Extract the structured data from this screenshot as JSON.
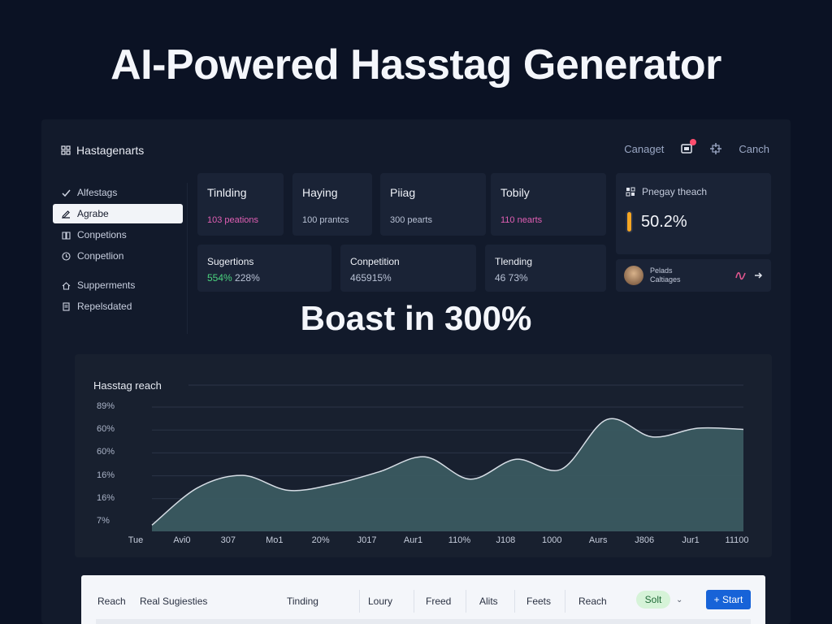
{
  "headline": "AI-Powered Hasstag Generator",
  "app": {
    "brand": "Hastagenarts",
    "top_actions": {
      "link1": "Canaget",
      "link2": "Canch"
    }
  },
  "sidebar": {
    "items": [
      {
        "label": "Alfestags",
        "icon": "check-icon"
      },
      {
        "label": "Agrabe",
        "icon": "edit-icon",
        "active": true
      },
      {
        "label": "Conpetions",
        "icon": "book-icon"
      },
      {
        "label": "Conpetlion",
        "icon": "clock-icon"
      },
      {
        "label": "Supperments",
        "icon": "home-icon"
      },
      {
        "label": "Repelsdated",
        "icon": "document-icon"
      }
    ]
  },
  "stat_cards": [
    {
      "title": "Tinlding",
      "sub": "103 peations",
      "sub_color": "#e15fb4"
    },
    {
      "title": "Haying",
      "sub": "100 prantcs",
      "sub_color": "#b8c1d4"
    },
    {
      "title": "Piiag",
      "sub": "300 pearts",
      "sub_color": "#b8c1d4"
    },
    {
      "title": "Tobily",
      "sub": "110 nearts",
      "sub_color": "#e15fb4"
    }
  ],
  "metric_cards": [
    {
      "title": "Sugertions",
      "value_a": "554%",
      "value_b": "228%"
    },
    {
      "title": "Conpetition",
      "value_a": "465915%",
      "value_b": ""
    },
    {
      "title": "Tlending",
      "value_a": "46 73%",
      "value_b": ""
    }
  ],
  "reach_card": {
    "label": "Pnegay theach",
    "percent": "50.2%"
  },
  "mini_card": {
    "line1": "Pelads",
    "line2": "Caltiages"
  },
  "overlay_text": "Boast in 300%",
  "chart_data": {
    "type": "area",
    "title": "Hasstag reach",
    "yticks": [
      "89%",
      "60%",
      "60%",
      "16%",
      "16%",
      "7%"
    ],
    "x": [
      "Tue",
      "Avi0",
      "307",
      "Mo1",
      "20%",
      "J017",
      "Aur1",
      "110%",
      "J108",
      "1000",
      "Aurs",
      "J806",
      "Jur1",
      "11100"
    ],
    "values": [
      5,
      35,
      45,
      33,
      38,
      48,
      60,
      42,
      58,
      50,
      90,
      76,
      83,
      82
    ],
    "ylim": [
      0,
      100
    ],
    "fill": "#3a5a60",
    "line": "#d6dde5"
  },
  "bottom_bar": {
    "items": [
      "Reach",
      "Real Sugiesties",
      "Tinding",
      "Loury",
      "Freed",
      "Alits",
      "Feets",
      "Reach"
    ],
    "badge": "Solt",
    "button": "+ Start"
  }
}
